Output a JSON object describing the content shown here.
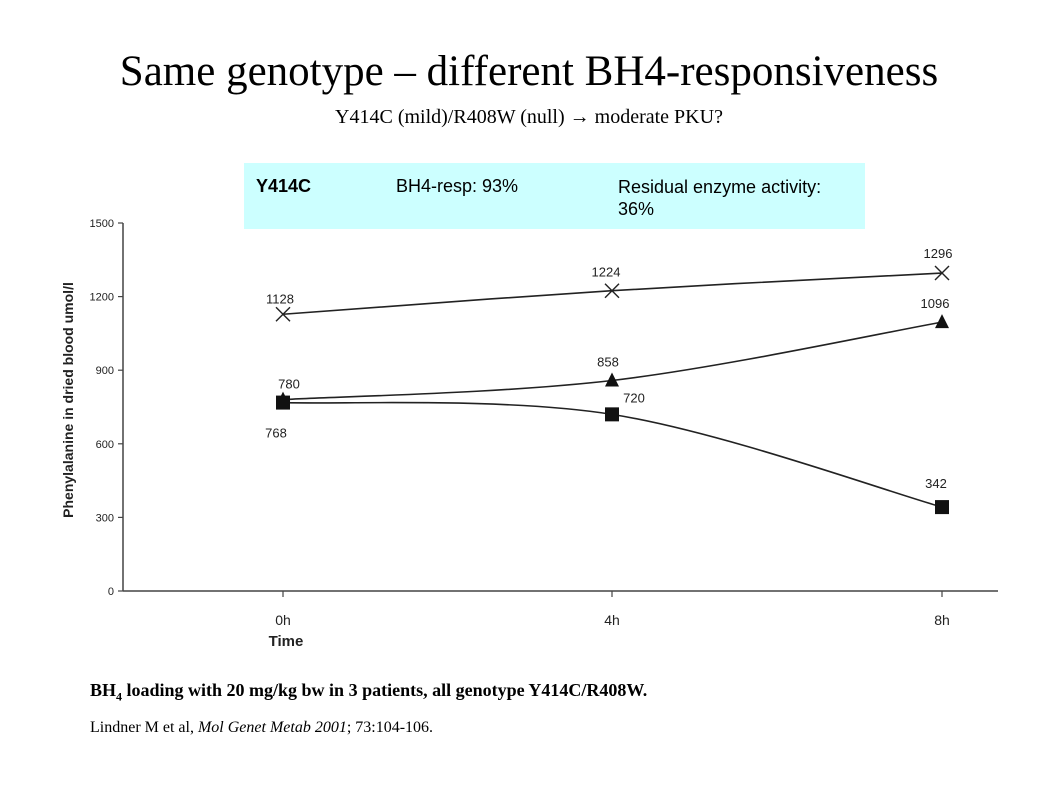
{
  "slide": {
    "title": "Same genotype – different BH4-responsiveness",
    "subtitle": "Y414C (mild)/R408W (null) →  moderate PKU?",
    "infobox": {
      "mutation": "Y414C",
      "responsiveness": "BH4-resp: 93%",
      "residual": "Residual enzyme activity: 36%",
      "background_color": "#ccffff"
    },
    "caption": {
      "prefix": "BH",
      "subscript": "4",
      "rest": " loading with 20 mg/kg bw in 3 patients, all genotype Y414C/R408W."
    },
    "citation": {
      "authors": "Lindner M et al, ",
      "journal": "Mol Genet Metab 2001",
      "details": "; 73:104-106."
    }
  },
  "chart_data": {
    "type": "line",
    "xlabel": "Time",
    "ylabel": "Phenylalanine in dried blood umol/l",
    "categories": [
      "0h",
      "4h",
      "8h"
    ],
    "ylim": [
      0,
      1500
    ],
    "yticks": [
      "0",
      "300",
      "600",
      "900",
      "1200",
      "1500"
    ],
    "series": [
      {
        "marker": "x",
        "values": [
          1128,
          1224,
          1296
        ],
        "labels": [
          "1128",
          "1224",
          "1296"
        ]
      },
      {
        "marker": "triangle",
        "values": [
          780,
          858,
          1096
        ],
        "labels": [
          "780",
          "858",
          "1096"
        ]
      },
      {
        "marker": "square",
        "values": [
          768,
          720,
          342
        ],
        "labels": [
          "768",
          "720",
          "342"
        ]
      }
    ]
  }
}
